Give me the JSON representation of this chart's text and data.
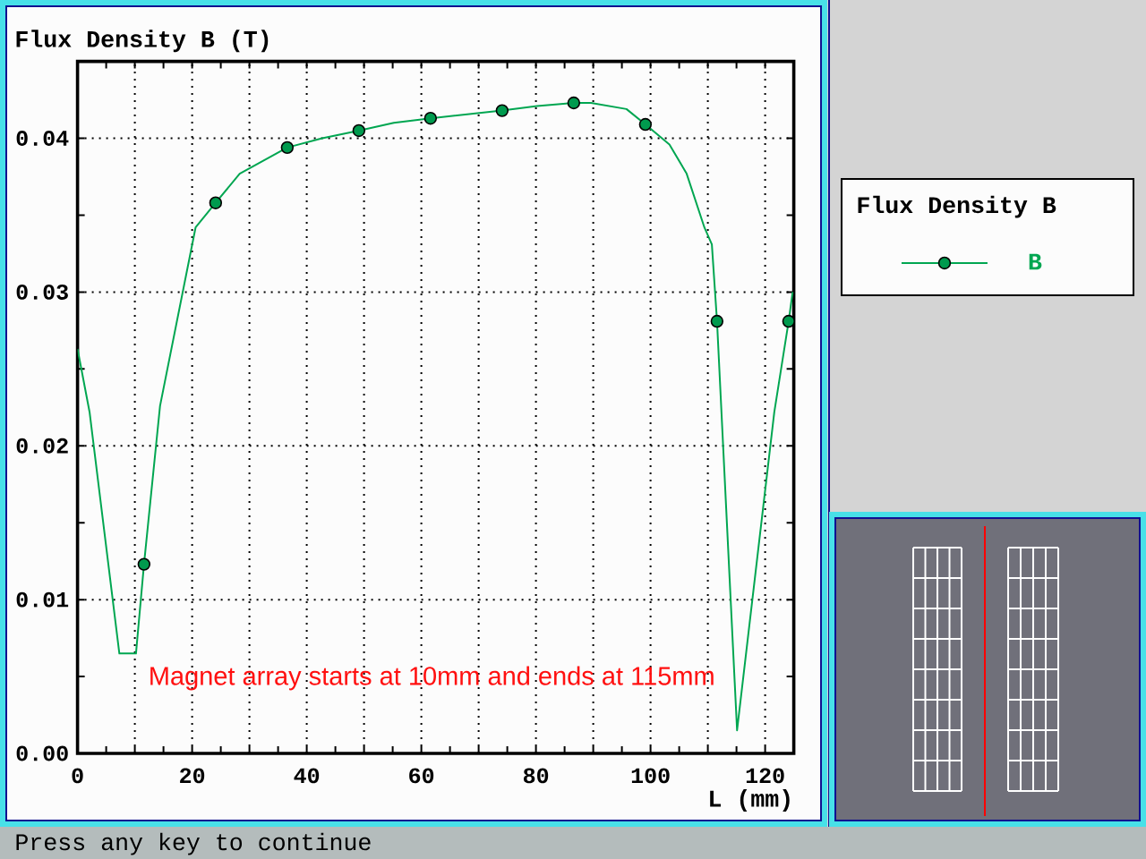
{
  "chart_data": {
    "type": "line",
    "ylabel": "Flux Density B (T)",
    "xlabel": "L (mm)",
    "legend_title": "Flux Density B",
    "annotations": [
      "Magnet array starts at 10mm and ends at 115mm",
      "Press any key to continue"
    ],
    "series": [
      {
        "name": "B",
        "color": "#00a651",
        "x": [
          0,
          2.1,
          7.3,
          10.2,
          11.6,
          14.4,
          20.6,
          24.1,
          28.3,
          36.6,
          42.7,
          49.1,
          55.2,
          61.6,
          74.1,
          80.2,
          86.6,
          89.6,
          95.8,
          99.1,
          103.3,
          106.3,
          109.4,
          110.7,
          111.6,
          115.1,
          121.6,
          124.1,
          124.8
        ],
        "values": [
          0.0263,
          0.0222,
          0.0065,
          0.0065,
          0.0123,
          0.0226,
          0.0342,
          0.0358,
          0.0377,
          0.0394,
          0.04,
          0.0405,
          0.041,
          0.0413,
          0.0418,
          0.0421,
          0.0423,
          0.0423,
          0.0419,
          0.0409,
          0.0396,
          0.0377,
          0.0342,
          0.0331,
          0.0281,
          0.0015,
          0.0222,
          0.0281,
          0.03
        ]
      },
      {
        "type": "scatter",
        "color": "#009a4e",
        "marker": "circle",
        "x": [
          11.6,
          24.1,
          36.6,
          49.1,
          61.6,
          74.1,
          86.6,
          99.1,
          111.6,
          124.1
        ],
        "values": [
          0.0123,
          0.0358,
          0.0394,
          0.0405,
          0.0413,
          0.0418,
          0.0423,
          0.0409,
          0.0281,
          0.0281
        ]
      }
    ],
    "xlim": [
      0,
      125
    ],
    "ylim": [
      0,
      0.045
    ],
    "xticks": [
      0,
      {
        "value": 10,
        "label": null
      },
      20,
      {
        "value": 30,
        "label": null
      },
      40,
      {
        "value": 50,
        "label": null
      },
      60,
      {
        "value": 70,
        "label": null
      },
      80,
      {
        "value": 90,
        "label": null
      },
      100,
      {
        "value": 110,
        "label": null
      },
      120
    ],
    "yticks": [
      {
        "value": 0,
        "label": "0.00"
      },
      0.01,
      0.02,
      0.03,
      0.04
    ],
    "grid": true,
    "legend": "right"
  }
}
